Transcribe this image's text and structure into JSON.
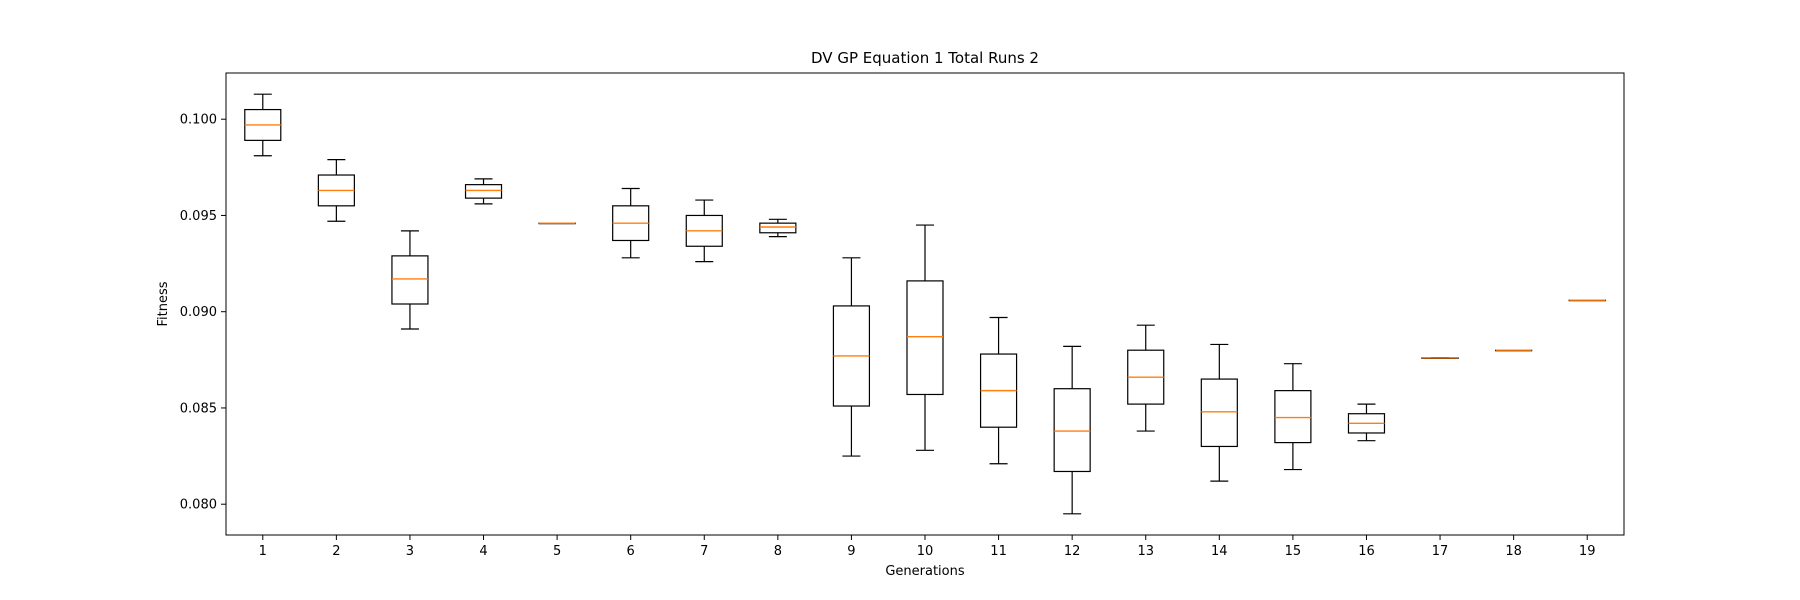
{
  "chart_data": {
    "type": "boxplot",
    "title": "DV GP Equation 1 Total Runs 2",
    "xlabel": "Generations",
    "ylabel": "Fitness",
    "ylim": [
      0.0784,
      0.1024
    ],
    "xlim": [
      0.5,
      19.5
    ],
    "yticks": [
      0.08,
      0.085,
      0.09,
      0.095,
      0.1
    ],
    "ytick_labels": [
      "0.080",
      "0.085",
      "0.090",
      "0.095",
      "0.100"
    ],
    "grid": false,
    "colors": {
      "box": "#000000",
      "median": "#ff7f0e"
    },
    "boxes": [
      {
        "label": "1",
        "whisker_low": 0.0981,
        "q1": 0.0989,
        "median": 0.0997,
        "q3": 0.1005,
        "whisker_high": 0.1013
      },
      {
        "label": "2",
        "whisker_low": 0.0947,
        "q1": 0.0955,
        "median": 0.0963,
        "q3": 0.0971,
        "whisker_high": 0.0979
      },
      {
        "label": "3",
        "whisker_low": 0.0891,
        "q1": 0.0904,
        "median": 0.0917,
        "q3": 0.0929,
        "whisker_high": 0.0942
      },
      {
        "label": "4",
        "whisker_low": 0.0956,
        "q1": 0.0959,
        "median": 0.0963,
        "q3": 0.0966,
        "whisker_high": 0.0969
      },
      {
        "label": "5",
        "whisker_low": 0.0946,
        "q1": 0.0946,
        "median": 0.0946,
        "q3": 0.0946,
        "whisker_high": 0.0946
      },
      {
        "label": "6",
        "whisker_low": 0.0928,
        "q1": 0.0937,
        "median": 0.0946,
        "q3": 0.0955,
        "whisker_high": 0.0964
      },
      {
        "label": "7",
        "whisker_low": 0.0926,
        "q1": 0.0934,
        "median": 0.0942,
        "q3": 0.095,
        "whisker_high": 0.0958
      },
      {
        "label": "8",
        "whisker_low": 0.0939,
        "q1": 0.0941,
        "median": 0.0944,
        "q3": 0.0946,
        "whisker_high": 0.0948
      },
      {
        "label": "9",
        "whisker_low": 0.0825,
        "q1": 0.0851,
        "median": 0.0877,
        "q3": 0.0903,
        "whisker_high": 0.0928
      },
      {
        "label": "10",
        "whisker_low": 0.0828,
        "q1": 0.0857,
        "median": 0.0887,
        "q3": 0.0916,
        "whisker_high": 0.0945
      },
      {
        "label": "11",
        "whisker_low": 0.0821,
        "q1": 0.084,
        "median": 0.0859,
        "q3": 0.0878,
        "whisker_high": 0.0897
      },
      {
        "label": "12",
        "whisker_low": 0.0795,
        "q1": 0.0817,
        "median": 0.0838,
        "q3": 0.086,
        "whisker_high": 0.0882
      },
      {
        "label": "13",
        "whisker_low": 0.0838,
        "q1": 0.0852,
        "median": 0.0866,
        "q3": 0.088,
        "whisker_high": 0.0893
      },
      {
        "label": "14",
        "whisker_low": 0.0812,
        "q1": 0.083,
        "median": 0.0848,
        "q3": 0.0865,
        "whisker_high": 0.0883
      },
      {
        "label": "15",
        "whisker_low": 0.0818,
        "q1": 0.0832,
        "median": 0.0845,
        "q3": 0.0859,
        "whisker_high": 0.0873
      },
      {
        "label": "16",
        "whisker_low": 0.0833,
        "q1": 0.0837,
        "median": 0.0842,
        "q3": 0.0847,
        "whisker_high": 0.0852
      },
      {
        "label": "17",
        "whisker_low": 0.0876,
        "q1": 0.0876,
        "median": 0.0876,
        "q3": 0.0876,
        "whisker_high": 0.0876
      },
      {
        "label": "18",
        "whisker_low": 0.088,
        "q1": 0.088,
        "median": 0.088,
        "q3": 0.088,
        "whisker_high": 0.088
      },
      {
        "label": "19",
        "whisker_low": 0.0906,
        "q1": 0.0906,
        "median": 0.0906,
        "q3": 0.0906,
        "whisker_high": 0.0906
      }
    ]
  }
}
